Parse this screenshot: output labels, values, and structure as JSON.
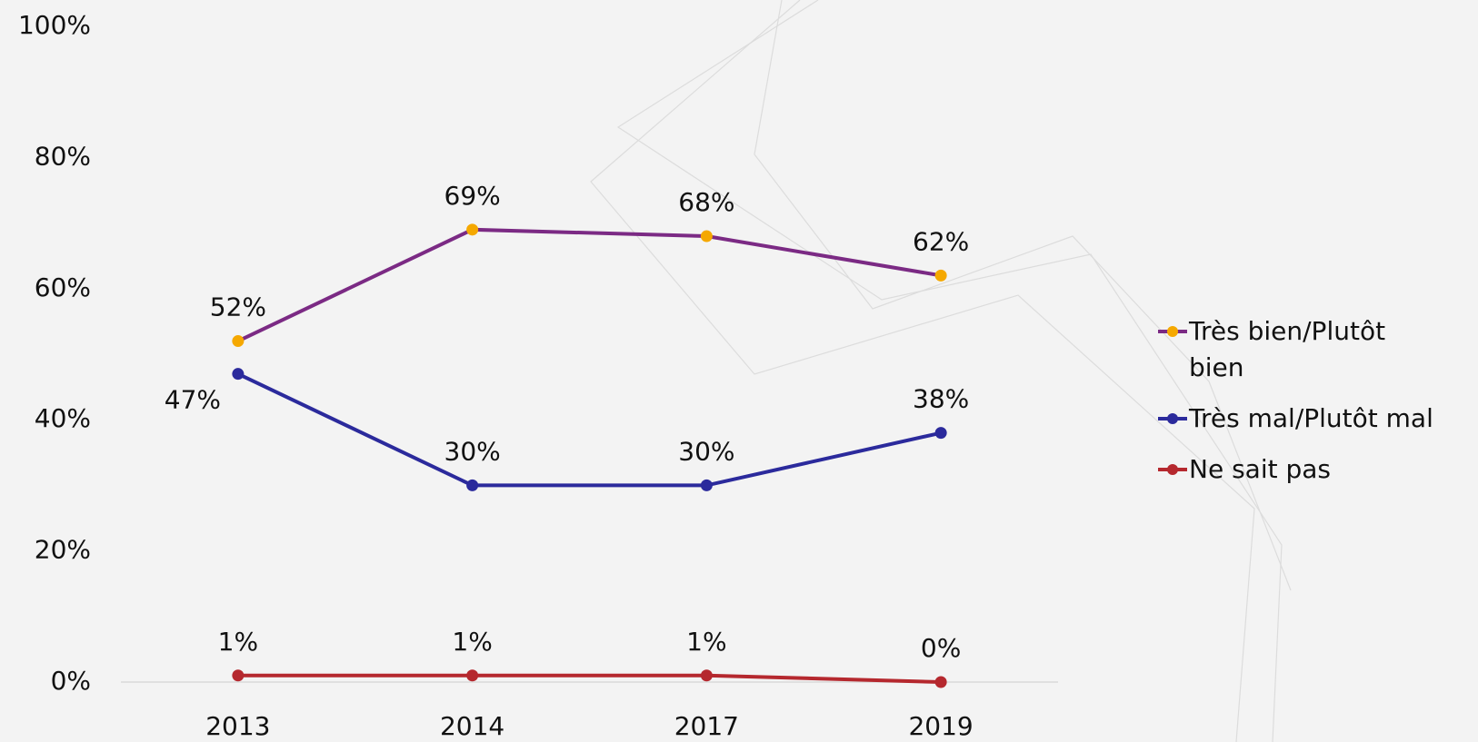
{
  "chart_data": {
    "type": "line",
    "categories": [
      "2013",
      "2014",
      "2017",
      "2019"
    ],
    "series": [
      {
        "name": "Très bien/Plutôt bien",
        "color": "#7b2a84",
        "marker_color": "#f5a800",
        "values": [
          52,
          69,
          68,
          62
        ],
        "value_labels": [
          "52%",
          "69%",
          "68%",
          "62%"
        ]
      },
      {
        "name": "Très mal/Plutôt mal",
        "color": "#2b2a9c",
        "marker_color": "#2b2a9c",
        "values": [
          47,
          30,
          30,
          38
        ],
        "value_labels": [
          "47%",
          "30%",
          "30%",
          "38%"
        ]
      },
      {
        "name": "Ne sait pas",
        "color": "#b5282e",
        "marker_color": "#b5282e",
        "values": [
          1,
          1,
          1,
          0
        ],
        "value_labels": [
          "1%",
          "1%",
          "1%",
          "0%"
        ]
      }
    ],
    "ylim": [
      0,
      100
    ],
    "yticks": [
      {
        "value": 0,
        "label": "0%"
      },
      {
        "value": 20,
        "label": "20%"
      },
      {
        "value": 40,
        "label": "40%"
      },
      {
        "value": 60,
        "label": "60%"
      },
      {
        "value": 80,
        "label": "80%"
      },
      {
        "value": 100,
        "label": "100%"
      }
    ],
    "grid": false,
    "legend": "right"
  }
}
